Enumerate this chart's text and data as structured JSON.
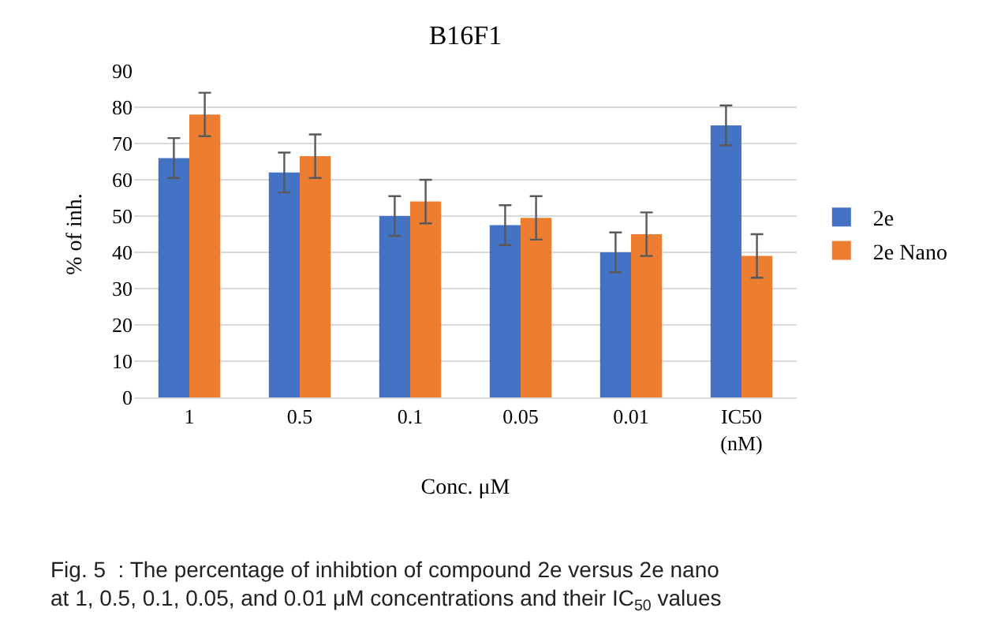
{
  "chart_data": {
    "type": "bar",
    "title": "B16F1",
    "xlabel": "Conc. μM",
    "ylabel": "% of inh.",
    "categories": [
      "1",
      "0.5",
      "0.1",
      "0.05",
      "0.01",
      "IC50\n(nM)"
    ],
    "series": [
      {
        "name": "2e",
        "color": "#4472c4",
        "values": [
          66,
          62,
          50,
          47.5,
          40,
          75
        ],
        "errors": [
          5.5,
          5.5,
          5.5,
          5.5,
          5.5,
          5.5
        ]
      },
      {
        "name": "2e Nano",
        "color": "#ed7d31",
        "values": [
          78,
          66.5,
          54,
          49.5,
          45,
          39
        ],
        "errors": [
          6,
          6,
          6,
          6,
          6,
          6
        ]
      }
    ],
    "ylim": [
      0,
      90
    ],
    "yticks": [
      0,
      10,
      20,
      30,
      40,
      50,
      60,
      70,
      80,
      90
    ],
    "grid": "y",
    "legend": "right",
    "annotations": [
      "Fig. 5  : The percentage of inhibtion of compound 2e versus 2e nano\nat 1, 0.5, 0.1, 0.05, and 0.01 μM concentrations and their IC$_{50}$ values"
    ]
  }
}
